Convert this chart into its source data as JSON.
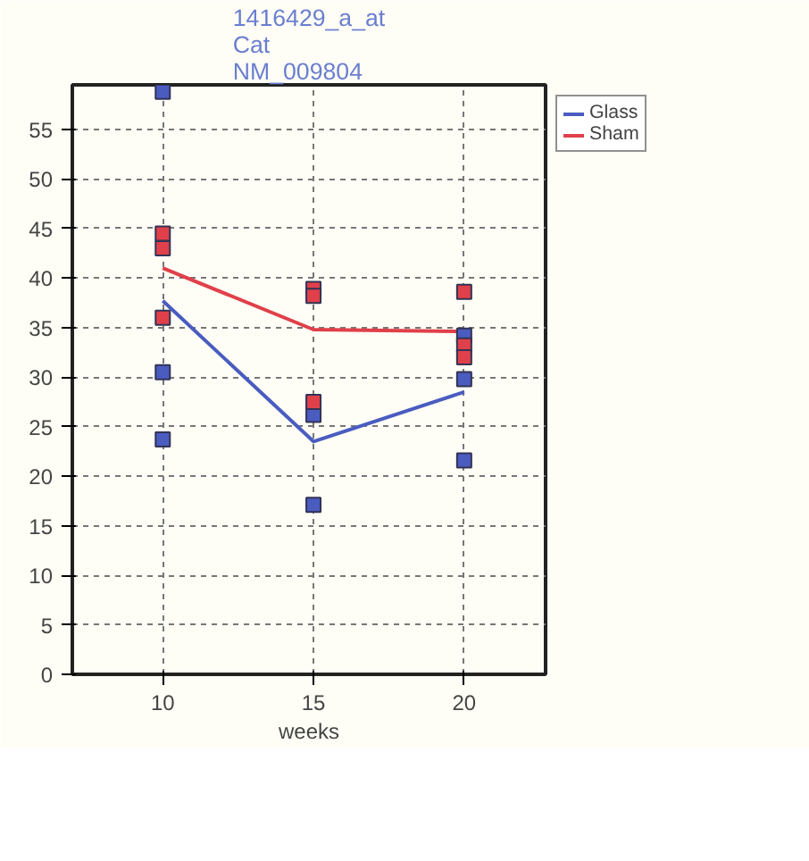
{
  "chart_data": {
    "type": "line",
    "title": "1416429_a_at\nCat\nNM_009804",
    "xlabel": "weeks",
    "x": [
      10,
      15,
      20
    ],
    "series": [
      {
        "name": "Glass",
        "color": "#4a5cc0",
        "values": [
          37.7,
          23.5,
          28.5
        ]
      },
      {
        "name": "Sham",
        "color": "#e0404a",
        "values": [
          41,
          34.8,
          34.6
        ]
      },
      {
        "type": "scatter",
        "marker": "square",
        "color": "#4a5cc0",
        "x": [
          10,
          10,
          10,
          15,
          15,
          20,
          20,
          20
        ],
        "values": [
          58.8,
          30.5,
          23.7,
          26.2,
          17.1,
          34.2,
          29.8,
          21.6
        ]
      },
      {
        "type": "scatter",
        "marker": "square",
        "color": "#e0404a",
        "x": [
          10,
          10,
          10,
          15,
          15,
          15,
          20,
          20,
          20
        ],
        "values": [
          44.5,
          43,
          36,
          38.9,
          38.2,
          27.5,
          38.6,
          33.2,
          32
        ]
      }
    ],
    "xlim": [
      7,
      22.7
    ],
    "xticks": [
      10,
      15,
      20
    ],
    "ylim": [
      0,
      59.5
    ],
    "yticks": [
      0,
      5,
      10,
      15,
      20,
      25,
      30,
      35,
      40,
      45,
      50,
      55
    ],
    "grid": true,
    "legend": "top right"
  }
}
